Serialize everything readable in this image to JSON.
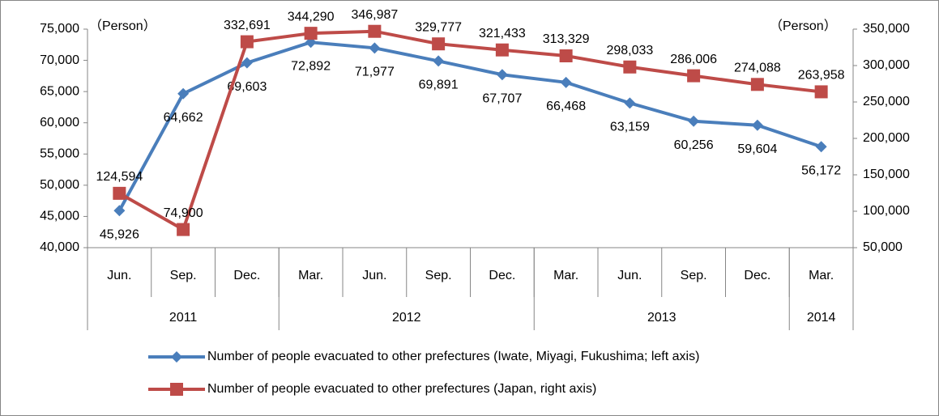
{
  "chart_data": {
    "type": "line",
    "y_label": "（Person）",
    "y2_label": "（Person）",
    "categories": [
      "Jun.",
      "Sep.",
      "Dec.",
      "Mar.",
      "Jun.",
      "Sep.",
      "Dec.",
      "Mar.",
      "Jun.",
      "Sep.",
      "Dec.",
      "Mar."
    ],
    "category_groups": [
      {
        "label": "2011",
        "count": 3
      },
      {
        "label": "2012",
        "count": 4
      },
      {
        "label": "2013",
        "count": 4
      },
      {
        "label": "2014",
        "count": 1
      }
    ],
    "series": [
      {
        "name": "Number of people evacuated to other prefectures (Iwate, Miyagi, Fukushima; left axis)",
        "color": "#4a7ebb",
        "marker": "diamond",
        "values": [
          45926,
          64662,
          69603,
          72892,
          71977,
          69891,
          67707,
          66468,
          63159,
          60256,
          59604,
          56172
        ],
        "value_labels": [
          "45,926",
          "64,662",
          "69,603",
          "72,892",
          "71,977",
          "69,891",
          "67,707",
          "66,468",
          "63,159",
          "60,256",
          "59,604",
          "56,172"
        ]
      },
      {
        "name": "Number of people evacuated to other prefectures (Japan, right axis)",
        "color": "#be4b48",
        "marker": "square",
        "axis": "y2",
        "values": [
          124594,
          74900,
          332691,
          344290,
          346987,
          329777,
          321433,
          313329,
          298033,
          286006,
          274088,
          263958
        ],
        "value_labels": [
          "124,594",
          "74,900",
          "332,691",
          "344,290",
          "346,987",
          "329,777",
          "321,433",
          "313,329",
          "298,033",
          "286,006",
          "274,088",
          "263,958"
        ]
      }
    ],
    "ylim": [
      40000,
      75000
    ],
    "yticks": [
      {
        "value": 40000,
        "label": "40,000"
      },
      {
        "value": 45000,
        "label": "45,000"
      },
      {
        "value": 50000,
        "label": "50,000"
      },
      {
        "value": 55000,
        "label": "55,000"
      },
      {
        "value": 60000,
        "label": "60,000"
      },
      {
        "value": 65000,
        "label": "65,000"
      },
      {
        "value": 70000,
        "label": "70,000"
      },
      {
        "value": 75000,
        "label": "75,000"
      }
    ],
    "y2lim": [
      50000,
      350000
    ],
    "y2ticks": [
      {
        "value": 50000,
        "label": "50,000"
      },
      {
        "value": 100000,
        "label": "100,000"
      },
      {
        "value": 150000,
        "label": "150,000"
      },
      {
        "value": 200000,
        "label": "200,000"
      },
      {
        "value": 250000,
        "label": "250,000"
      },
      {
        "value": 300000,
        "label": "300,000"
      },
      {
        "value": 350000,
        "label": "350,000"
      }
    ],
    "grid": false,
    "legend": "bottom"
  }
}
